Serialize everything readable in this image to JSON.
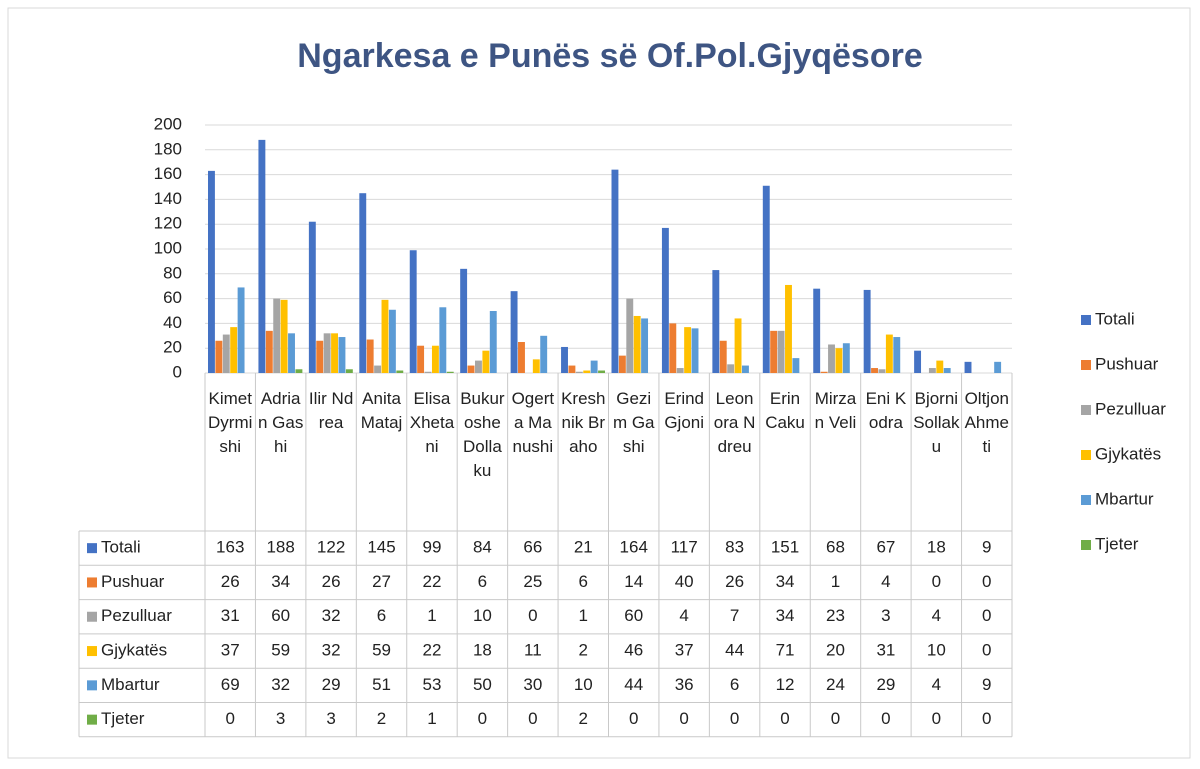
{
  "chart_data": {
    "type": "bar",
    "title": "Ngarkesa e Punës së Of.Pol.Gjyqësore",
    "categories": [
      "Kimet Dyrmishi",
      "Adrian Gashi",
      "Ilir Ndrea",
      "Anita Mataj",
      "Elisa Xhetani",
      "Bukuroshe Dollaku",
      "Ogerta Manushi",
      "Kreshnik Braho",
      "Gezim Gashi",
      "Erind Gjoni",
      "Leonora Ndreu",
      "Erin Caku",
      "Mirzan Veli",
      "Eni Kodra",
      "Bjorni Sollaku",
      "Oltjon Ahmeti"
    ],
    "series": [
      {
        "name": "Totali",
        "color": "#4472c4",
        "values": [
          163,
          188,
          122,
          145,
          99,
          84,
          66,
          21,
          164,
          117,
          83,
          151,
          68,
          67,
          18,
          9
        ]
      },
      {
        "name": "Pushuar",
        "color": "#ed7d31",
        "values": [
          26,
          34,
          26,
          27,
          22,
          6,
          25,
          6,
          14,
          40,
          26,
          34,
          1,
          4,
          0,
          0
        ]
      },
      {
        "name": "Pezulluar",
        "color": "#a5a5a5",
        "values": [
          31,
          60,
          32,
          6,
          1,
          10,
          0,
          1,
          60,
          4,
          7,
          34,
          23,
          3,
          4,
          0
        ]
      },
      {
        "name": "Gjykatës",
        "color": "#ffc000",
        "values": [
          37,
          59,
          32,
          59,
          22,
          18,
          11,
          2,
          46,
          37,
          44,
          71,
          20,
          31,
          10,
          0
        ]
      },
      {
        "name": "Mbartur",
        "color": "#5b9bd5",
        "values": [
          69,
          32,
          29,
          51,
          53,
          50,
          30,
          10,
          44,
          36,
          6,
          12,
          24,
          29,
          4,
          9
        ]
      },
      {
        "name": "Tjeter",
        "color": "#70ad47",
        "values": [
          0,
          3,
          3,
          2,
          1,
          0,
          0,
          2,
          0,
          0,
          0,
          0,
          0,
          0,
          0,
          0
        ]
      }
    ],
    "ylim": [
      0,
      200
    ],
    "yticks": [
      0,
      20,
      40,
      60,
      80,
      100,
      120,
      140,
      160,
      180,
      200
    ],
    "grid": true,
    "legend": "right"
  }
}
